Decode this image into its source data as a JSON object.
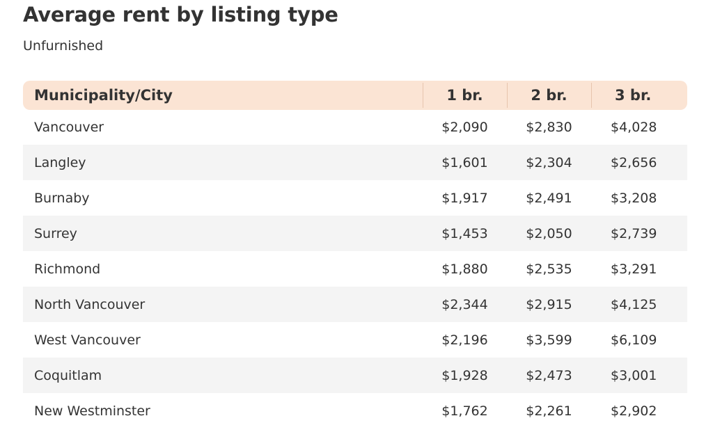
{
  "chart_data": {
    "type": "table",
    "title": "Average rent by listing type",
    "subtitle": "Unfurnished",
    "columns": [
      "Municipality/City",
      "1 br.",
      "2 br.",
      "3 br."
    ],
    "rows": [
      {
        "city": "Vancouver",
        "br1": "$2,090",
        "br2": "$2,830",
        "br3": "$4,028"
      },
      {
        "city": "Langley",
        "br1": "$1,601",
        "br2": "$2,304",
        "br3": "$2,656"
      },
      {
        "city": "Burnaby",
        "br1": "$1,917",
        "br2": "$2,491",
        "br3": "$3,208"
      },
      {
        "city": "Surrey",
        "br1": "$1,453",
        "br2": "$2,050",
        "br3": "$2,739"
      },
      {
        "city": "Richmond",
        "br1": "$1,880",
        "br2": "$2,535",
        "br3": "$3,291"
      },
      {
        "city": "North Vancouver",
        "br1": "$2,344",
        "br2": "$2,915",
        "br3": "$4,125"
      },
      {
        "city": "West Vancouver",
        "br1": "$2,196",
        "br2": "$3,599",
        "br3": "$6,109"
      },
      {
        "city": "Coquitlam",
        "br1": "$1,928",
        "br2": "$2,473",
        "br3": "$3,001"
      },
      {
        "city": "New Westminster",
        "br1": "$1,762",
        "br2": "$2,261",
        "br3": "$2,902"
      }
    ]
  },
  "colors": {
    "header_bg": "#fbe4d4",
    "header_divider": "#e7c4ad",
    "stripe_bg": "#f4f4f4",
    "text": "#333333"
  }
}
